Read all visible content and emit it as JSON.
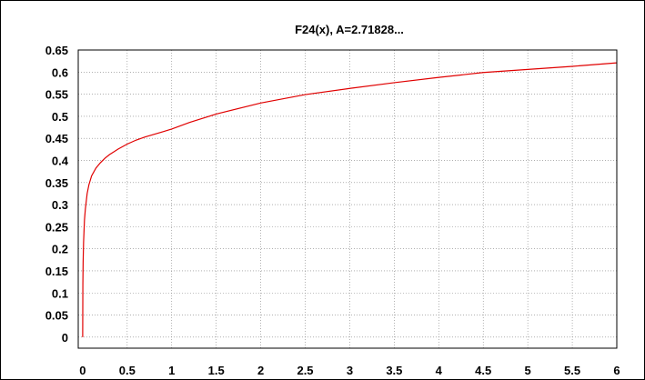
{
  "chart_data": {
    "type": "line",
    "title": "F24(x),  A=2.71828...",
    "xlabel": "",
    "ylabel": "",
    "xlim": [
      -0.05,
      6
    ],
    "ylim": [
      -0.025,
      0.65
    ],
    "x_ticks": [
      0,
      0.5,
      1,
      1.5,
      2,
      2.5,
      3,
      3.5,
      4,
      4.5,
      5,
      5.5,
      6
    ],
    "x_tick_labels": [
      "0",
      "0.5",
      "1",
      "1.5",
      "2",
      "2.5",
      "3",
      "3.5",
      "4",
      "4.5",
      "5",
      "5.5",
      "6"
    ],
    "y_ticks": [
      0,
      0.05,
      0.1,
      0.15,
      0.2,
      0.25,
      0.3,
      0.35,
      0.4,
      0.45,
      0.5,
      0.55,
      0.6,
      0.65
    ],
    "y_tick_labels": [
      "0",
      "0.05",
      "0.1",
      "0.15",
      "0.2",
      "0.25",
      "0.3",
      "0.35",
      "0.4",
      "0.45",
      "0.5",
      "0.55",
      "0.6",
      "0.65"
    ],
    "grid": true,
    "series": [
      {
        "color": "#e00000",
        "x": [
          0,
          0.002,
          0.005,
          0.01,
          0.02,
          0.03,
          0.05,
          0.07,
          0.1,
          0.15,
          0.2,
          0.25,
          0.3,
          0.4,
          0.5,
          0.6,
          0.7,
          0.8,
          0.9,
          1.0,
          1.2,
          1.5,
          2.0,
          2.5,
          3.0,
          3.5,
          4.0,
          4.5,
          5.0,
          5.5,
          6.0
        ],
        "y": [
          0,
          0.12,
          0.17,
          0.215,
          0.265,
          0.29,
          0.325,
          0.345,
          0.365,
          0.383,
          0.395,
          0.405,
          0.413,
          0.426,
          0.437,
          0.446,
          0.453,
          0.459,
          0.465,
          0.471,
          0.486,
          0.505,
          0.53,
          0.549,
          0.563,
          0.576,
          0.588,
          0.599,
          0.606,
          0.613,
          0.621
        ]
      }
    ]
  }
}
